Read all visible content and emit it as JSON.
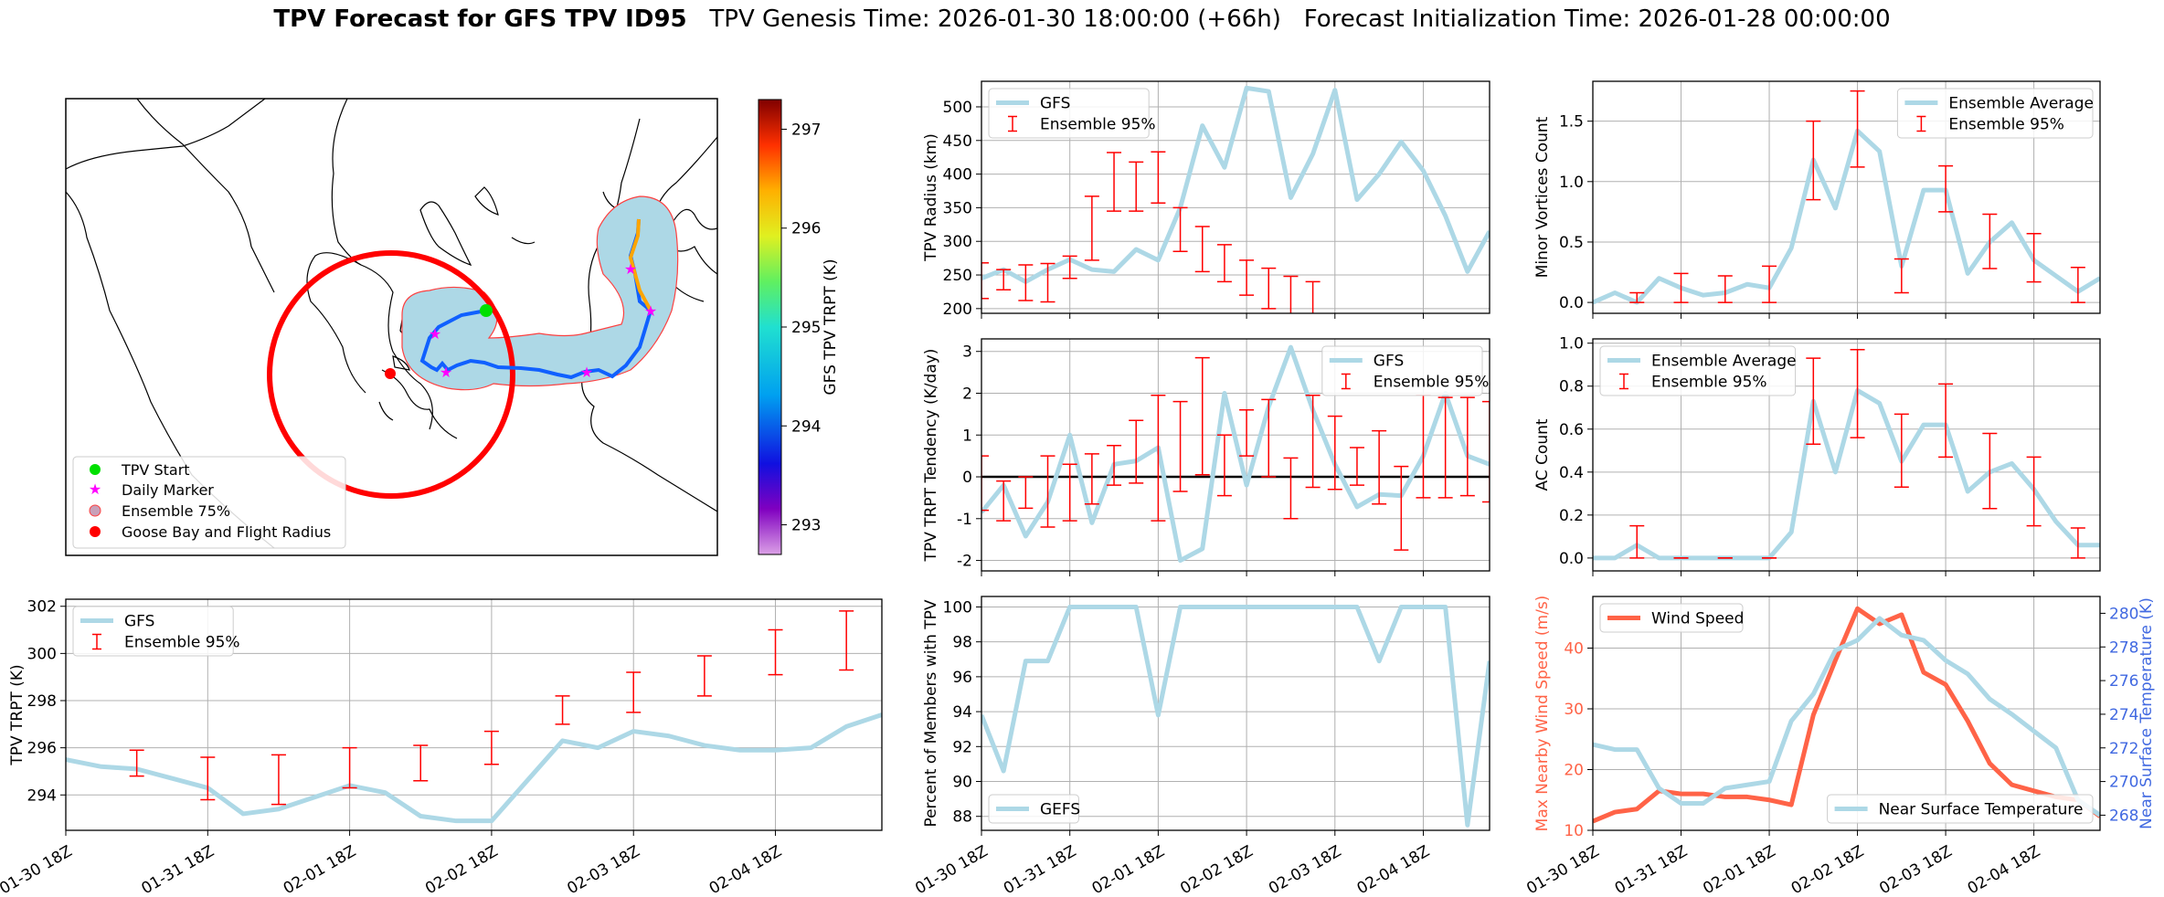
{
  "title": {
    "bold": "TPV Forecast for GFS TPV ID95",
    "genesis": "TPV Genesis Time: 2026-01-30 18:00:00 (+66h)",
    "init": "Forecast Initialization Time: 2026-01-28 00:00:00"
  },
  "colors": {
    "gfs": "#add8e6",
    "ensemble": "#ff0000",
    "wind": "#ff6347",
    "temp_axis": "#4169e1"
  },
  "time_ticks": [
    "01-30 18Z",
    "01-31 18Z",
    "02-01 18Z",
    "02-02 18Z",
    "02-03 18Z",
    "02-04 18Z"
  ],
  "map": {
    "colorbar_label": "GFS TPV TRPT (K)",
    "colorbar_ticks": [
      293,
      294,
      295,
      296,
      297
    ],
    "colorbar_range": [
      292.7,
      297.3
    ],
    "legend": [
      "TPV Start",
      "Daily Marker",
      "Ensemble 75%",
      "Goose Bay and Flight Radius"
    ]
  },
  "chart_data": [
    {
      "id": "trpt",
      "type": "line",
      "ylabel": "TPV TRPT (K)",
      "ylim": [
        292.5,
        302.3
      ],
      "yticks": [
        294,
        296,
        298,
        300,
        302
      ],
      "legend_location": "upper-left",
      "x": [
        0,
        0.25,
        0.5,
        0.75,
        1,
        1.25,
        1.5,
        1.75,
        2,
        2.25,
        2.5,
        2.75,
        3,
        3.25,
        3.5,
        3.75,
        4,
        4.25,
        4.5,
        4.75,
        5,
        5.25,
        5.5,
        5.75
      ],
      "series": [
        {
          "name": "GFS",
          "values": [
            295.5,
            295.2,
            295.1,
            294.7,
            294.3,
            293.2,
            293.4,
            293.9,
            294.4,
            294.1,
            293.1,
            292.9,
            292.9,
            294.6,
            296.3,
            296.0,
            296.7,
            296.5,
            296.1,
            295.9,
            295.9,
            296.0,
            296.9,
            297.4
          ]
        }
      ],
      "ensemble": {
        "name": "Ensemble 95%",
        "x": [
          0.5,
          1,
          1.5,
          2,
          2.5,
          3,
          3.5,
          4,
          4.5,
          5,
          5.5
        ],
        "lo": [
          294.8,
          293.8,
          293.6,
          294.3,
          294.6,
          295.3,
          297.0,
          297.5,
          298.2,
          299.1,
          299.3
        ],
        "hi": [
          295.9,
          295.6,
          295.7,
          296.0,
          296.1,
          296.7,
          298.2,
          299.2,
          299.9,
          301.0,
          301.8
        ]
      }
    },
    {
      "id": "radius",
      "type": "line",
      "ylabel": "TPV Radius (km)",
      "ylim": [
        193,
        538
      ],
      "yticks": [
        200,
        250,
        300,
        350,
        400,
        450,
        500
      ],
      "legend_location": "upper-left",
      "x": [
        0,
        0.25,
        0.5,
        0.75,
        1,
        1.25,
        1.5,
        1.75,
        2,
        2.25,
        2.5,
        2.75,
        3,
        3.25,
        3.5,
        3.75,
        4,
        4.25,
        4.5,
        4.75,
        5,
        5.25,
        5.5,
        5.75
      ],
      "series": [
        {
          "name": "GFS",
          "values": [
            245,
            258,
            240,
            258,
            273,
            258,
            255,
            288,
            272,
            350,
            472,
            410,
            528,
            523,
            365,
            430,
            525,
            362,
            400,
            448,
            405,
            338,
            255,
            315
          ]
        }
      ],
      "ensemble": {
        "name": "Ensemble 95%",
        "x": [
          0,
          0.25,
          0.5,
          0.75,
          1,
          1.25,
          1.5,
          1.75,
          2,
          2.25,
          2.5,
          2.75,
          3,
          3.25,
          3.5,
          3.75
        ],
        "lo": [
          215,
          228,
          212,
          210,
          245,
          272,
          345,
          345,
          357,
          285,
          255,
          240,
          220,
          200,
          190,
          188
        ],
        "hi": [
          268,
          258,
          265,
          267,
          278,
          367,
          432,
          418,
          433,
          350,
          322,
          295,
          272,
          260,
          248,
          240
        ]
      }
    },
    {
      "id": "minor",
      "type": "line",
      "ylabel": "Minor Vortices Count",
      "ylim": [
        -0.09,
        1.83
      ],
      "yticks": [
        0.0,
        0.5,
        1.0,
        1.5
      ],
      "legend_location": "upper-right",
      "x": [
        0,
        0.25,
        0.5,
        0.75,
        1,
        1.25,
        1.5,
        1.75,
        2,
        2.25,
        2.5,
        2.75,
        3,
        3.25,
        3.5,
        3.75,
        4,
        4.25,
        4.5,
        4.75,
        5,
        5.25,
        5.5,
        5.75
      ],
      "series": [
        {
          "name": "Ensemble Average",
          "values": [
            0.0,
            0.08,
            0.0,
            0.2,
            0.12,
            0.06,
            0.08,
            0.15,
            0.12,
            0.45,
            1.18,
            0.78,
            1.42,
            1.25,
            0.3,
            0.93,
            0.93,
            0.24,
            0.5,
            0.66,
            0.35,
            0.22,
            0.09,
            0.2
          ]
        }
      ],
      "ensemble": {
        "name": "Ensemble 95%",
        "x": [
          0.5,
          1,
          1.5,
          2,
          2.5,
          3,
          3.5,
          4,
          4.5,
          5,
          5.5
        ],
        "lo": [
          0.0,
          0.0,
          0.0,
          0.0,
          0.85,
          1.12,
          0.08,
          0.75,
          0.28,
          0.17,
          0.0
        ],
        "hi": [
          0.08,
          0.24,
          0.22,
          0.3,
          1.5,
          1.75,
          0.36,
          1.13,
          0.73,
          0.57,
          0.29
        ]
      }
    },
    {
      "id": "tendency",
      "type": "line",
      "ylabel": "TPV TRPT Tendency (K/day)",
      "ylim": [
        -2.25,
        3.3
      ],
      "yticks": [
        -2,
        -1,
        0,
        1,
        2,
        3
      ],
      "legend_location": "upper-right",
      "zero_line": true,
      "x": [
        0,
        0.25,
        0.5,
        0.75,
        1,
        1.25,
        1.5,
        1.75,
        2,
        2.25,
        2.5,
        2.75,
        3,
        3.25,
        3.5,
        3.75,
        4,
        4.25,
        4.5,
        4.75,
        5,
        5.25,
        5.5,
        5.75
      ],
      "series": [
        {
          "name": "GFS",
          "values": [
            -0.85,
            -0.2,
            -1.42,
            -0.6,
            1.0,
            -1.1,
            0.3,
            0.38,
            0.7,
            -2.0,
            -1.72,
            2.0,
            -0.2,
            1.68,
            3.1,
            1.6,
            0.3,
            -0.72,
            -0.42,
            -0.45,
            0.5,
            2.0,
            0.5,
            0.3
          ]
        }
      ],
      "ensemble": {
        "name": "Ensemble 95%",
        "x": [
          0,
          0.25,
          0.5,
          0.75,
          1,
          1.25,
          1.5,
          1.75,
          2,
          2.25,
          2.5,
          2.75,
          3,
          3.25,
          3.5,
          3.75,
          4,
          4.25,
          4.5,
          4.75,
          5,
          5.25,
          5.5,
          5.75
        ],
        "lo": [
          -0.8,
          -1.05,
          -0.75,
          -1.2,
          -1.05,
          -0.65,
          -0.2,
          -0.15,
          -1.05,
          -0.35,
          0.05,
          -0.45,
          0.5,
          0.0,
          -1.0,
          -0.25,
          -0.3,
          -0.2,
          -0.65,
          -1.75,
          -0.5,
          -0.5,
          -0.45,
          -0.6
        ],
        "hi": [
          0.5,
          -0.1,
          0.0,
          0.5,
          0.3,
          0.55,
          0.75,
          1.35,
          1.95,
          1.8,
          2.85,
          1.0,
          1.6,
          1.85,
          0.45,
          1.95,
          1.45,
          0.7,
          1.1,
          0.25,
          1.95,
          1.9,
          1.9,
          1.8
        ]
      }
    },
    {
      "id": "ac",
      "type": "line",
      "ylabel": "AC Count",
      "ylim": [
        -0.06,
        1.02
      ],
      "yticks": [
        0.0,
        0.2,
        0.4,
        0.6,
        0.8,
        1.0
      ],
      "legend_location": "upper-left",
      "x": [
        0,
        0.25,
        0.5,
        0.75,
        1,
        1.25,
        1.5,
        1.75,
        2,
        2.25,
        2.5,
        2.75,
        3,
        3.25,
        3.5,
        3.75,
        4,
        4.25,
        4.5,
        4.75,
        5,
        5.25,
        5.5,
        5.75
      ],
      "series": [
        {
          "name": "Ensemble Average",
          "values": [
            0.0,
            0.0,
            0.06,
            0.0,
            0.0,
            0.0,
            0.0,
            0.0,
            0.0,
            0.12,
            0.73,
            0.4,
            0.78,
            0.72,
            0.45,
            0.62,
            0.62,
            0.31,
            0.4,
            0.44,
            0.32,
            0.17,
            0.06,
            0.06
          ]
        }
      ],
      "ensemble": {
        "name": "Ensemble 95%",
        "x": [
          0.5,
          1,
          1.5,
          2,
          2.5,
          3,
          3.5,
          4,
          4.5,
          5,
          5.5
        ],
        "lo": [
          0.0,
          0.0,
          0.0,
          0.0,
          0.53,
          0.56,
          0.33,
          0.47,
          0.23,
          0.15,
          0.0
        ],
        "hi": [
          0.15,
          0.0,
          0.0,
          0.0,
          0.93,
          0.97,
          0.67,
          0.81,
          0.58,
          0.47,
          0.14
        ]
      }
    },
    {
      "id": "percent",
      "type": "line",
      "ylabel": "Percent of Members with TPV",
      "ylim": [
        87.2,
        100.6
      ],
      "yticks": [
        88,
        90,
        92,
        94,
        96,
        98,
        100
      ],
      "legend_location": "lower-left",
      "x": [
        0,
        0.25,
        0.5,
        0.75,
        1,
        1.25,
        1.5,
        1.75,
        2,
        2.25,
        2.5,
        2.75,
        3,
        3.25,
        3.5,
        3.75,
        4,
        4.25,
        4.5,
        4.75,
        5,
        5.25,
        5.5,
        5.75
      ],
      "series": [
        {
          "name": "GEFS",
          "values": [
            93.8,
            90.6,
            96.9,
            96.9,
            100,
            100,
            100,
            100,
            93.8,
            100,
            100,
            100,
            100,
            100,
            100,
            100,
            100,
            100,
            96.9,
            100,
            100,
            100,
            87.5,
            96.9
          ]
        }
      ]
    },
    {
      "id": "wind_temp",
      "type": "line",
      "ylabel": "Max Nearby Wind Speed (m/s)",
      "ylabel_right": "Near Surface Temperature (K)",
      "ylim": [
        10,
        48.5
      ],
      "yticks": [
        10,
        20,
        30,
        40
      ],
      "ylim_right": [
        267.1,
        281.0
      ],
      "yticks_right": [
        268,
        270,
        272,
        274,
        276,
        278,
        280
      ],
      "x": [
        0,
        0.25,
        0.5,
        0.75,
        1,
        1.25,
        1.5,
        1.75,
        2,
        2.25,
        2.5,
        2.75,
        3,
        3.25,
        3.5,
        3.75,
        4,
        4.25,
        4.5,
        4.75,
        5,
        5.25,
        5.5,
        5.75
      ],
      "series": [
        {
          "name": "Wind Speed",
          "axis": "left",
          "legend_location": "upper-left",
          "values": [
            11.5,
            13,
            13.5,
            16.5,
            16.0,
            16.0,
            15.5,
            15.5,
            15.0,
            14.2,
            29,
            38,
            46.5,
            44,
            45.5,
            36,
            34,
            28,
            21,
            17.5,
            16.5,
            15.5,
            15.0,
            12.3
          ]
        },
        {
          "name": "Near Surface Temperature",
          "axis": "right",
          "legend_location": "lower-right",
          "values": [
            272.2,
            271.9,
            271.9,
            269.6,
            268.7,
            268.7,
            269.6,
            269.8,
            270.0,
            273.6,
            275.2,
            277.8,
            278.4,
            279.7,
            278.7,
            278.4,
            277.2,
            276.4,
            274.9,
            274.0,
            273.0,
            272.0,
            268.9,
            268.0
          ]
        }
      ]
    }
  ]
}
